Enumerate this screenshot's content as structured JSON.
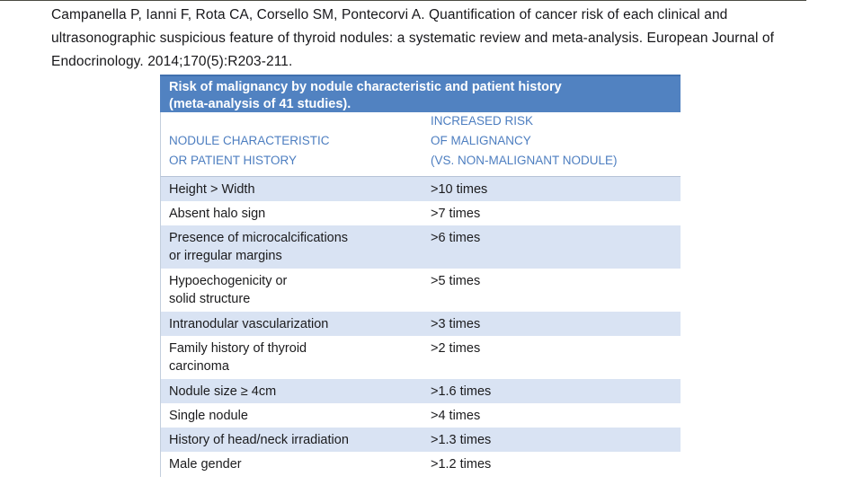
{
  "citation": {
    "lines": [
      "Campanella P, Ianni F, Rota CA, Corsello SM, Pontecorvi A. Quantification of cancer risk of each clinical and",
      "ultrasonographic suspicious feature of thyroid nodules: a systematic review and meta-analysis. European Journal of",
      "Endocrinology. 2014;170(5):R203-211."
    ]
  },
  "table": {
    "title": "Risk of malignancy by nodule characteristic and patient history\n(meta-analysis of 41 studies).",
    "col_headers": [
      "NODULE CHARACTERISTIC\nOR PATIENT HISTORY",
      "INCREASED RISK\nOF MALIGNANCY\n(VS. NON-MALIGNANT NODULE)"
    ],
    "rows": [
      {
        "characteristic": "Height > Width",
        "risk": ">10 times"
      },
      {
        "characteristic": "Absent halo sign",
        "risk": ">7 times"
      },
      {
        "characteristic": "Presence of microcalcifications\nor irregular margins",
        "risk": ">6 times"
      },
      {
        "characteristic": "Hypoechogenicity or\nsolid structure",
        "risk": ">5 times"
      },
      {
        "characteristic": "Intranodular vascularization",
        "risk": ">3 times"
      },
      {
        "characteristic": "Family history of thyroid\ncarcinoma",
        "risk": ">2 times"
      },
      {
        "characteristic": "Nodule size ≥ 4cm",
        "risk": ">1.6 times"
      },
      {
        "characteristic": "Single nodule",
        "risk": ">4 times"
      },
      {
        "characteristic": "History of head/neck irradiation",
        "risk": ">1.3 times"
      },
      {
        "characteristic": "Male gender",
        "risk": ">1.2 times"
      }
    ],
    "colors": {
      "header_bg": "#5182c1",
      "header_top_edge": "#4070ae",
      "header_text": "#ffffff",
      "column_header_text": "#4d7ec0",
      "shaded_row_bg": "#d9e3f3",
      "body_text": "#1b1b1d",
      "border": "#c3cedd"
    }
  }
}
